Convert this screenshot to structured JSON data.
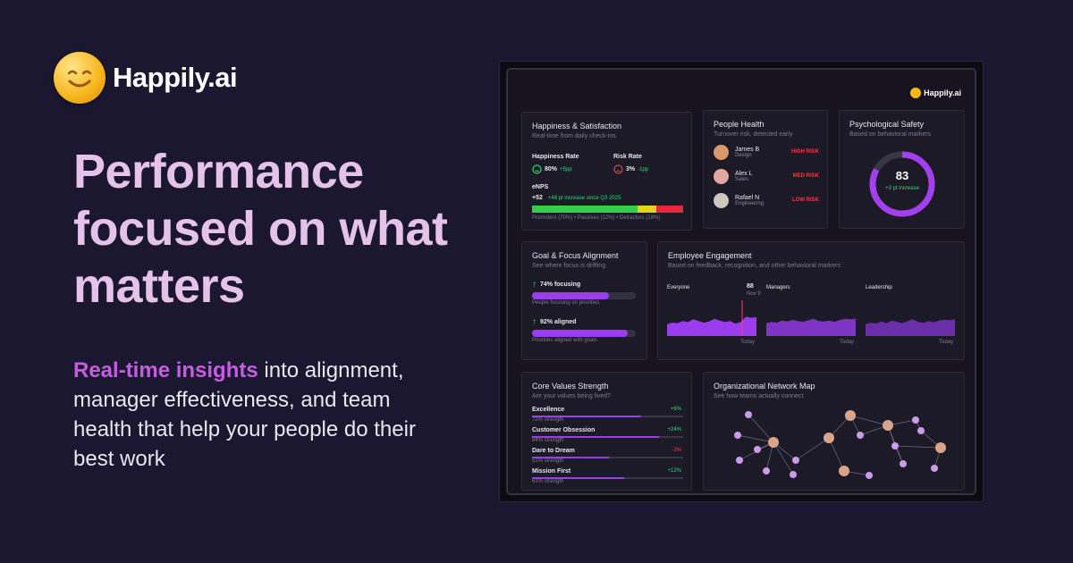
{
  "brand": {
    "name": "Happily.ai"
  },
  "headline": "Performance focused on what matters",
  "subheadline": {
    "highlight": "Real-time insights",
    "rest": " into alignment, manager effectiveness, and team health that help your people do their best work"
  },
  "dashboard": {
    "logo_text": "Happily.ai",
    "happiness": {
      "title": "Happiness & Satisfaction",
      "subtitle": "Real-time from daily check-ins",
      "happiness_rate_label": "Happiness Rate",
      "happiness_rate": "80%",
      "happiness_delta": "+5pp",
      "risk_rate_label": "Risk Rate",
      "risk_rate": "3%",
      "risk_delta": "-1pp",
      "enps_label": "eNPS",
      "enps_value": "+52",
      "enps_note": "+48 pt increase since Q3 2025",
      "enps_legend": "Promoters (70%) • Passives (12%) • Detractors (18%)",
      "segments": [
        {
          "name": "Promoters",
          "fraction": 0.7,
          "color": "#2fd14b"
        },
        {
          "name": "Passives",
          "fraction": 0.12,
          "color": "#e8d21a"
        },
        {
          "name": "Detractors",
          "fraction": 0.18,
          "color": "#e8253a"
        }
      ]
    },
    "people": {
      "title": "People Health",
      "subtitle": "Turnover risk, detected early",
      "rows": [
        {
          "name": "James B",
          "dept": "Design",
          "risk": "HIGH RISK",
          "color": "#ef3b46",
          "avatar": "#d79a6a"
        },
        {
          "name": "Alex L",
          "dept": "Sales",
          "risk": "MED RISK",
          "color": "#ef3b46",
          "avatar": "#e2a7a0"
        },
        {
          "name": "Rafael N",
          "dept": "Engineering",
          "risk": "LOW RISK",
          "color": "#ef3b46",
          "avatar": "#cfc6be"
        }
      ]
    },
    "safety": {
      "title": "Psychological Safety",
      "subtitle": "Based on behavioral markers",
      "value": "83",
      "note": "+3 pt increase",
      "fraction": 0.83
    },
    "goal": {
      "title": "Goal & Focus Alignment",
      "subtitle": "See where focus is drifting",
      "rows": [
        {
          "label": "74% focusing",
          "caption": "People focusing on priorities",
          "fraction": 0.74
        },
        {
          "label": "92% aligned",
          "caption": "Priorities aligned with goals",
          "fraction": 0.92
        }
      ]
    },
    "engagement": {
      "title": "Employee Engagement",
      "subtitle": "Based on feedback, recognition, and other behavioral markers",
      "panels": [
        {
          "label": "Everyone",
          "today": "Today",
          "marker_value": "88",
          "marker_date": "Nov 9"
        },
        {
          "label": "Managers",
          "today": "Today"
        },
        {
          "label": "Leadership",
          "today": "Today"
        }
      ]
    },
    "values": {
      "title": "Core Values Strength",
      "subtitle": "Are your values being lived?",
      "rows": [
        {
          "name": "Excellence",
          "delta": "+6%",
          "strength": "72% strength",
          "fraction": 0.72,
          "positive": true
        },
        {
          "name": "Customer Obsession",
          "delta": "+24%",
          "strength": "84% strength",
          "fraction": 0.84,
          "positive": true
        },
        {
          "name": "Dare to Dream",
          "delta": "-3%",
          "strength": "51% strength",
          "fraction": 0.51,
          "positive": false
        },
        {
          "name": "Mission First",
          "delta": "+12%",
          "strength": "61% strength",
          "fraction": 0.61,
          "positive": true
        }
      ]
    },
    "network": {
      "title": "Organizational Network Map",
      "subtitle": "See how teams actually connect"
    }
  },
  "colors": {
    "headline": "#e5c2ea",
    "accent": "#c65de1",
    "bg": "#1b1730",
    "bar": "#9b3cef"
  }
}
